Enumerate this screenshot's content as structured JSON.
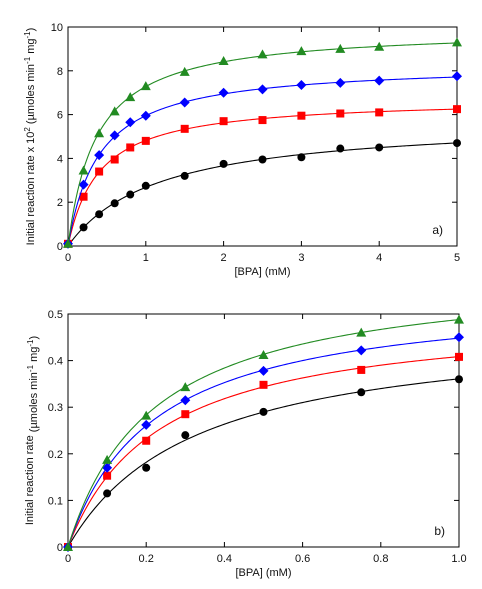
{
  "chart_data": [
    {
      "type": "scatter",
      "panel_label": "a)",
      "xlabel": "[BPA] (mM)",
      "ylabel_main": "Initial reaction rate x 10",
      "ylabel_exp": "2",
      "ylabel_unit_open": " (µmoles min",
      "ylabel_unit_exp1": "-1",
      "ylabel_unit_mid": " mg",
      "ylabel_unit_exp2": "-1",
      "ylabel_unit_close": ")",
      "xlim": [
        0,
        5
      ],
      "ylim": [
        0,
        10
      ],
      "x_ticks": [
        "0",
        "1",
        "2",
        "3",
        "4",
        "5"
      ],
      "y_ticks": [
        "0",
        "2",
        "4",
        "6",
        "8",
        "10"
      ],
      "fit_curves": true,
      "series": [
        {
          "marker": "circle",
          "color": "#000000",
          "x": [
            0,
            0.2,
            0.4,
            0.6,
            0.8,
            1.0,
            1.5,
            2.0,
            2.5,
            3.0,
            3.5,
            4.0,
            5.0
          ],
          "y": [
            0.1,
            0.85,
            1.45,
            1.95,
            2.35,
            2.75,
            3.2,
            3.75,
            3.95,
            4.05,
            4.45,
            4.5,
            4.7
          ]
        },
        {
          "marker": "square",
          "color": "#ff0000",
          "x": [
            0,
            0.2,
            0.4,
            0.6,
            0.8,
            1.0,
            1.5,
            2.0,
            2.5,
            3.0,
            3.5,
            4.0,
            5.0
          ],
          "y": [
            0.1,
            2.25,
            3.4,
            3.95,
            4.5,
            4.8,
            5.35,
            5.7,
            5.75,
            5.95,
            6.05,
            6.1,
            6.25
          ]
        },
        {
          "marker": "diamond",
          "color": "#0000ff",
          "x": [
            0,
            0.2,
            0.4,
            0.6,
            0.8,
            1.0,
            1.5,
            2.0,
            2.5,
            3.0,
            3.5,
            4.0,
            5.0
          ],
          "y": [
            0.1,
            2.8,
            4.15,
            5.05,
            5.65,
            5.95,
            6.55,
            7.0,
            7.15,
            7.35,
            7.45,
            7.55,
            7.75
          ]
        },
        {
          "marker": "triangle",
          "color": "#228b22",
          "x": [
            0,
            0.2,
            0.4,
            0.6,
            0.8,
            1.0,
            1.5,
            2.0,
            2.5,
            3.0,
            3.5,
            4.0,
            5.0
          ],
          "y": [
            0.1,
            3.45,
            5.15,
            6.15,
            6.8,
            7.3,
            7.95,
            8.45,
            8.75,
            8.9,
            9.0,
            9.1,
            9.3
          ]
        }
      ]
    },
    {
      "type": "scatter",
      "panel_label": "b)",
      "xlabel": "[BPA]  (mM)",
      "ylabel_main": "Initial reaction rate",
      "ylabel_exp": "",
      "ylabel_unit_open": " (µmoles min",
      "ylabel_unit_exp1": "-1",
      "ylabel_unit_mid": "  mg",
      "ylabel_unit_exp2": "-1",
      "ylabel_unit_close": ")",
      "xlim": [
        0,
        1.0
      ],
      "ylim": [
        0,
        0.5
      ],
      "x_ticks": [
        "0",
        "0.2",
        "0.4",
        "0.6",
        "0.8",
        "1.0"
      ],
      "y_ticks": [
        "0",
        "0.1",
        "0.2",
        "0.3",
        "0.4",
        "0.5"
      ],
      "fit_curves": true,
      "series": [
        {
          "marker": "circle",
          "color": "#000000",
          "x": [
            0,
            0.1,
            0.2,
            0.3,
            0.5,
            0.75,
            1.0
          ],
          "y": [
            0.0,
            0.115,
            0.17,
            0.24,
            0.29,
            0.332,
            0.36
          ]
        },
        {
          "marker": "square",
          "color": "#ff0000",
          "x": [
            0,
            0.1,
            0.2,
            0.3,
            0.5,
            0.75,
            1.0
          ],
          "y": [
            0.0,
            0.153,
            0.228,
            0.285,
            0.348,
            0.38,
            0.408
          ]
        },
        {
          "marker": "diamond",
          "color": "#0000ff",
          "x": [
            0,
            0.1,
            0.2,
            0.3,
            0.5,
            0.75,
            1.0
          ],
          "y": [
            0.0,
            0.17,
            0.262,
            0.315,
            0.378,
            0.422,
            0.45
          ]
        },
        {
          "marker": "triangle",
          "color": "#228b22",
          "x": [
            0,
            0.1,
            0.2,
            0.3,
            0.5,
            0.75,
            1.0
          ],
          "y": [
            0.0,
            0.187,
            0.282,
            0.343,
            0.412,
            0.46,
            0.488
          ]
        }
      ]
    }
  ]
}
